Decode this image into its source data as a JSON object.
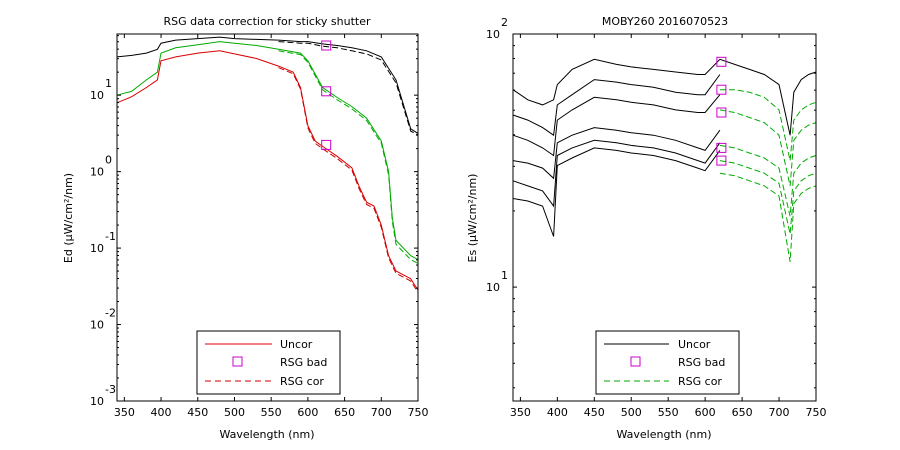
{
  "colors": {
    "uncor_left": "#dd0000",
    "uncor_right": "#000000",
    "bad": "#cc00cc",
    "cor": "#00aa00",
    "cor_left": "#cc0000"
  },
  "chart_data": [
    {
      "type": "line",
      "title": "RSG data correction for sticky shutter",
      "xlabel": "Wavelength (nm)",
      "ylabel": "Ed (µW/cm²/nm)",
      "xlim": [
        340,
        750
      ],
      "ylim_log10": [
        -3,
        1.8
      ],
      "log_y": true,
      "xticks": [
        "350",
        "400",
        "450",
        "500",
        "550",
        "600",
        "650",
        "700",
        "750"
      ],
      "yticks": [
        {
          "base": "10",
          "exp": "1"
        },
        {
          "base": "10",
          "exp": "0"
        },
        {
          "base": "10",
          "exp": "-1"
        },
        {
          "base": "10",
          "exp": "-2"
        },
        {
          "base": "10",
          "exp": "-3"
        }
      ],
      "legend": {
        "placement": "bottom-center",
        "entries": [
          "Uncor",
          "RSG bad",
          "RSG cor"
        ]
      },
      "series": [
        {
          "name": "Uncor",
          "style": "solid",
          "color": "#000000",
          "x": [
            340,
            360,
            380,
            395,
            400,
            420,
            450,
            480,
            500,
            530,
            560,
            590,
            600,
            620,
            640,
            660,
            680,
            700,
            720,
            740,
            750
          ],
          "y": [
            1.5,
            1.52,
            1.55,
            1.6,
            1.68,
            1.72,
            1.74,
            1.76,
            1.74,
            1.73,
            1.72,
            1.7,
            1.7,
            1.67,
            1.65,
            1.62,
            1.58,
            1.5,
            1.2,
            0.56,
            0.5
          ]
        },
        {
          "name": "Uncor",
          "style": "solid",
          "color": "#00aa00",
          "x": [
            340,
            360,
            380,
            395,
            400,
            420,
            450,
            480,
            500,
            530,
            560,
            590,
            600,
            620,
            640,
            660,
            680,
            700,
            710,
            715,
            720,
            740,
            750
          ],
          "y": [
            1.0,
            1.05,
            1.2,
            1.3,
            1.55,
            1.62,
            1.66,
            1.7,
            1.68,
            1.65,
            1.6,
            1.55,
            1.45,
            1.1,
            0.97,
            0.85,
            0.7,
            0.4,
            0.0,
            -0.6,
            -0.9,
            -1.1,
            -1.15
          ]
        },
        {
          "name": "Uncor",
          "style": "solid",
          "color": "#dd0000",
          "x": [
            340,
            360,
            380,
            395,
            400,
            420,
            450,
            480,
            500,
            530,
            560,
            580,
            590,
            600,
            610,
            620,
            640,
            660,
            670,
            680,
            690,
            700,
            710,
            720,
            740,
            750
          ],
          "y": [
            0.9,
            0.98,
            1.1,
            1.2,
            1.45,
            1.5,
            1.55,
            1.58,
            1.54,
            1.48,
            1.38,
            1.3,
            1.1,
            0.6,
            0.4,
            0.33,
            0.2,
            0.05,
            -0.2,
            -0.4,
            -0.45,
            -0.7,
            -1.1,
            -1.3,
            -1.4,
            -1.55
          ]
        },
        {
          "name": "RSG cor",
          "style": "dashed",
          "color": "#000000",
          "x": [
            560,
            590,
            600,
            620,
            640,
            660,
            680,
            700,
            720,
            740,
            750
          ],
          "y": [
            1.7,
            1.68,
            1.68,
            1.64,
            1.62,
            1.58,
            1.54,
            1.46,
            1.16,
            0.53,
            0.48
          ]
        },
        {
          "name": "RSG cor",
          "style": "dashed",
          "color": "#00aa00",
          "x": [
            560,
            590,
            600,
            620,
            640,
            660,
            680,
            700,
            710,
            715,
            720,
            740,
            750
          ],
          "y": [
            1.58,
            1.53,
            1.43,
            1.07,
            0.94,
            0.82,
            0.67,
            0.37,
            -0.04,
            -0.65,
            -0.95,
            -1.15,
            -1.2
          ]
        },
        {
          "name": "RSG cor",
          "style": "dashed",
          "color": "#cc0000",
          "x": [
            560,
            580,
            590,
            600,
            610,
            620,
            640,
            660,
            670,
            680,
            690,
            700,
            710,
            720,
            740,
            750
          ],
          "y": [
            1.36,
            1.28,
            1.08,
            0.57,
            0.37,
            0.3,
            0.17,
            0.02,
            -0.23,
            -0.43,
            -0.48,
            -0.73,
            -1.13,
            -1.33,
            -1.43,
            -1.58
          ]
        }
      ],
      "markers": {
        "name": "RSG bad",
        "x": [
          625,
          625,
          625
        ],
        "y": [
          1.65,
          1.05,
          0.35
        ]
      }
    },
    {
      "type": "line",
      "title": "MOBY260  2016070523",
      "xlabel": "Wavelength (nm)",
      "ylabel": "Es (µW/cm²/nm)",
      "xlim": [
        340,
        750
      ],
      "ylim_log10": [
        0.55,
        2.0
      ],
      "log_y": true,
      "xticks": [
        "350",
        "400",
        "450",
        "500",
        "550",
        "600",
        "650",
        "700",
        "750"
      ],
      "yticks": [
        {
          "base": "10",
          "exp": "2"
        },
        {
          "base": "10",
          "exp": "1"
        }
      ],
      "legend": {
        "placement": "bottom-center",
        "entries": [
          "Uncor",
          "RSG bad",
          "RSG cor"
        ]
      },
      "series": [
        {
          "name": "Uncor",
          "style": "solid",
          "color": "#000000",
          "x": [
            340,
            360,
            380,
            395,
            400,
            420,
            450,
            480,
            500,
            530,
            560,
            590,
            600,
            620,
            640,
            660,
            680,
            700,
            715,
            720,
            730,
            740,
            750
          ],
          "y": [
            1.78,
            1.74,
            1.72,
            1.74,
            1.8,
            1.86,
            1.9,
            1.88,
            1.87,
            1.86,
            1.85,
            1.84,
            1.84,
            1.9,
            1.88,
            1.86,
            1.84,
            1.8,
            1.6,
            1.77,
            1.82,
            1.84,
            1.85
          ]
        },
        {
          "name": "Uncor",
          "style": "solid",
          "color": "#000000",
          "x": [
            340,
            360,
            380,
            395,
            400,
            420,
            450,
            480,
            500,
            530,
            560,
            590,
            600,
            620
          ],
          "y": [
            1.68,
            1.66,
            1.63,
            1.6,
            1.72,
            1.76,
            1.82,
            1.81,
            1.8,
            1.79,
            1.77,
            1.76,
            1.76,
            1.84
          ]
        },
        {
          "name": "Uncor",
          "style": "solid",
          "color": "#000000",
          "x": [
            340,
            360,
            380,
            395,
            400,
            420,
            450,
            480,
            500,
            530,
            560,
            590,
            600,
            620
          ],
          "y": [
            1.6,
            1.58,
            1.55,
            1.52,
            1.66,
            1.7,
            1.75,
            1.74,
            1.73,
            1.72,
            1.7,
            1.69,
            1.69,
            1.76
          ]
        },
        {
          "name": "Uncor",
          "style": "solid",
          "color": "#000000",
          "x": [
            340,
            360,
            380,
            395,
            400,
            420,
            450,
            480,
            500,
            530,
            560,
            590,
            600,
            620
          ],
          "y": [
            1.5,
            1.49,
            1.47,
            1.43,
            1.57,
            1.6,
            1.63,
            1.62,
            1.61,
            1.6,
            1.58,
            1.55,
            1.54,
            1.62
          ]
        },
        {
          "name": "Uncor",
          "style": "solid",
          "color": "#000000",
          "x": [
            340,
            360,
            380,
            395,
            400,
            420,
            450,
            480,
            500,
            530,
            560,
            590,
            600,
            620
          ],
          "y": [
            1.42,
            1.4,
            1.38,
            1.32,
            1.52,
            1.55,
            1.58,
            1.57,
            1.56,
            1.55,
            1.53,
            1.5,
            1.49,
            1.57
          ]
        },
        {
          "name": "Uncor",
          "style": "solid",
          "color": "#000000",
          "x": [
            340,
            360,
            380,
            395,
            400,
            420,
            450,
            480,
            500,
            530,
            560,
            590,
            600,
            620
          ],
          "y": [
            1.35,
            1.34,
            1.32,
            1.2,
            1.48,
            1.51,
            1.55,
            1.54,
            1.53,
            1.52,
            1.5,
            1.47,
            1.46,
            1.54
          ]
        },
        {
          "name": "RSG cor",
          "style": "dashed",
          "color": "#00aa00",
          "x": [
            620,
            640,
            660,
            680,
            700,
            715,
            720,
            730,
            740,
            750
          ],
          "y": [
            1.78,
            1.78,
            1.77,
            1.75,
            1.7,
            1.5,
            1.66,
            1.7,
            1.72,
            1.73
          ]
        },
        {
          "name": "RSG cor",
          "style": "dashed",
          "color": "#00aa00",
          "x": [
            620,
            640,
            660,
            680,
            700,
            715,
            720,
            730,
            740,
            750
          ],
          "y": [
            1.7,
            1.69,
            1.67,
            1.65,
            1.6,
            1.4,
            1.58,
            1.62,
            1.64,
            1.65
          ]
        },
        {
          "name": "RSG cor",
          "style": "dashed",
          "color": "#00aa00",
          "x": [
            620,
            640,
            660,
            680,
            700,
            715,
            720,
            730,
            740,
            750
          ],
          "y": [
            1.56,
            1.55,
            1.53,
            1.51,
            1.47,
            1.28,
            1.45,
            1.49,
            1.51,
            1.52
          ]
        },
        {
          "name": "RSG cor",
          "style": "dashed",
          "color": "#00aa00",
          "x": [
            620,
            640,
            660,
            680,
            700,
            715,
            720,
            730,
            740,
            750
          ],
          "y": [
            1.5,
            1.49,
            1.47,
            1.45,
            1.41,
            1.21,
            1.38,
            1.42,
            1.44,
            1.45
          ]
        },
        {
          "name": "RSG cor",
          "style": "dashed",
          "color": "#00aa00",
          "x": [
            620,
            640,
            660,
            680,
            700,
            715,
            720,
            730,
            740,
            750
          ],
          "y": [
            1.45,
            1.44,
            1.42,
            1.4,
            1.36,
            1.1,
            1.33,
            1.37,
            1.39,
            1.4
          ]
        }
      ],
      "markers": {
        "name": "RSG bad",
        "x": [
          622,
          622,
          622,
          622,
          622
        ],
        "y": [
          1.89,
          1.78,
          1.69,
          1.55,
          1.5
        ]
      }
    }
  ]
}
